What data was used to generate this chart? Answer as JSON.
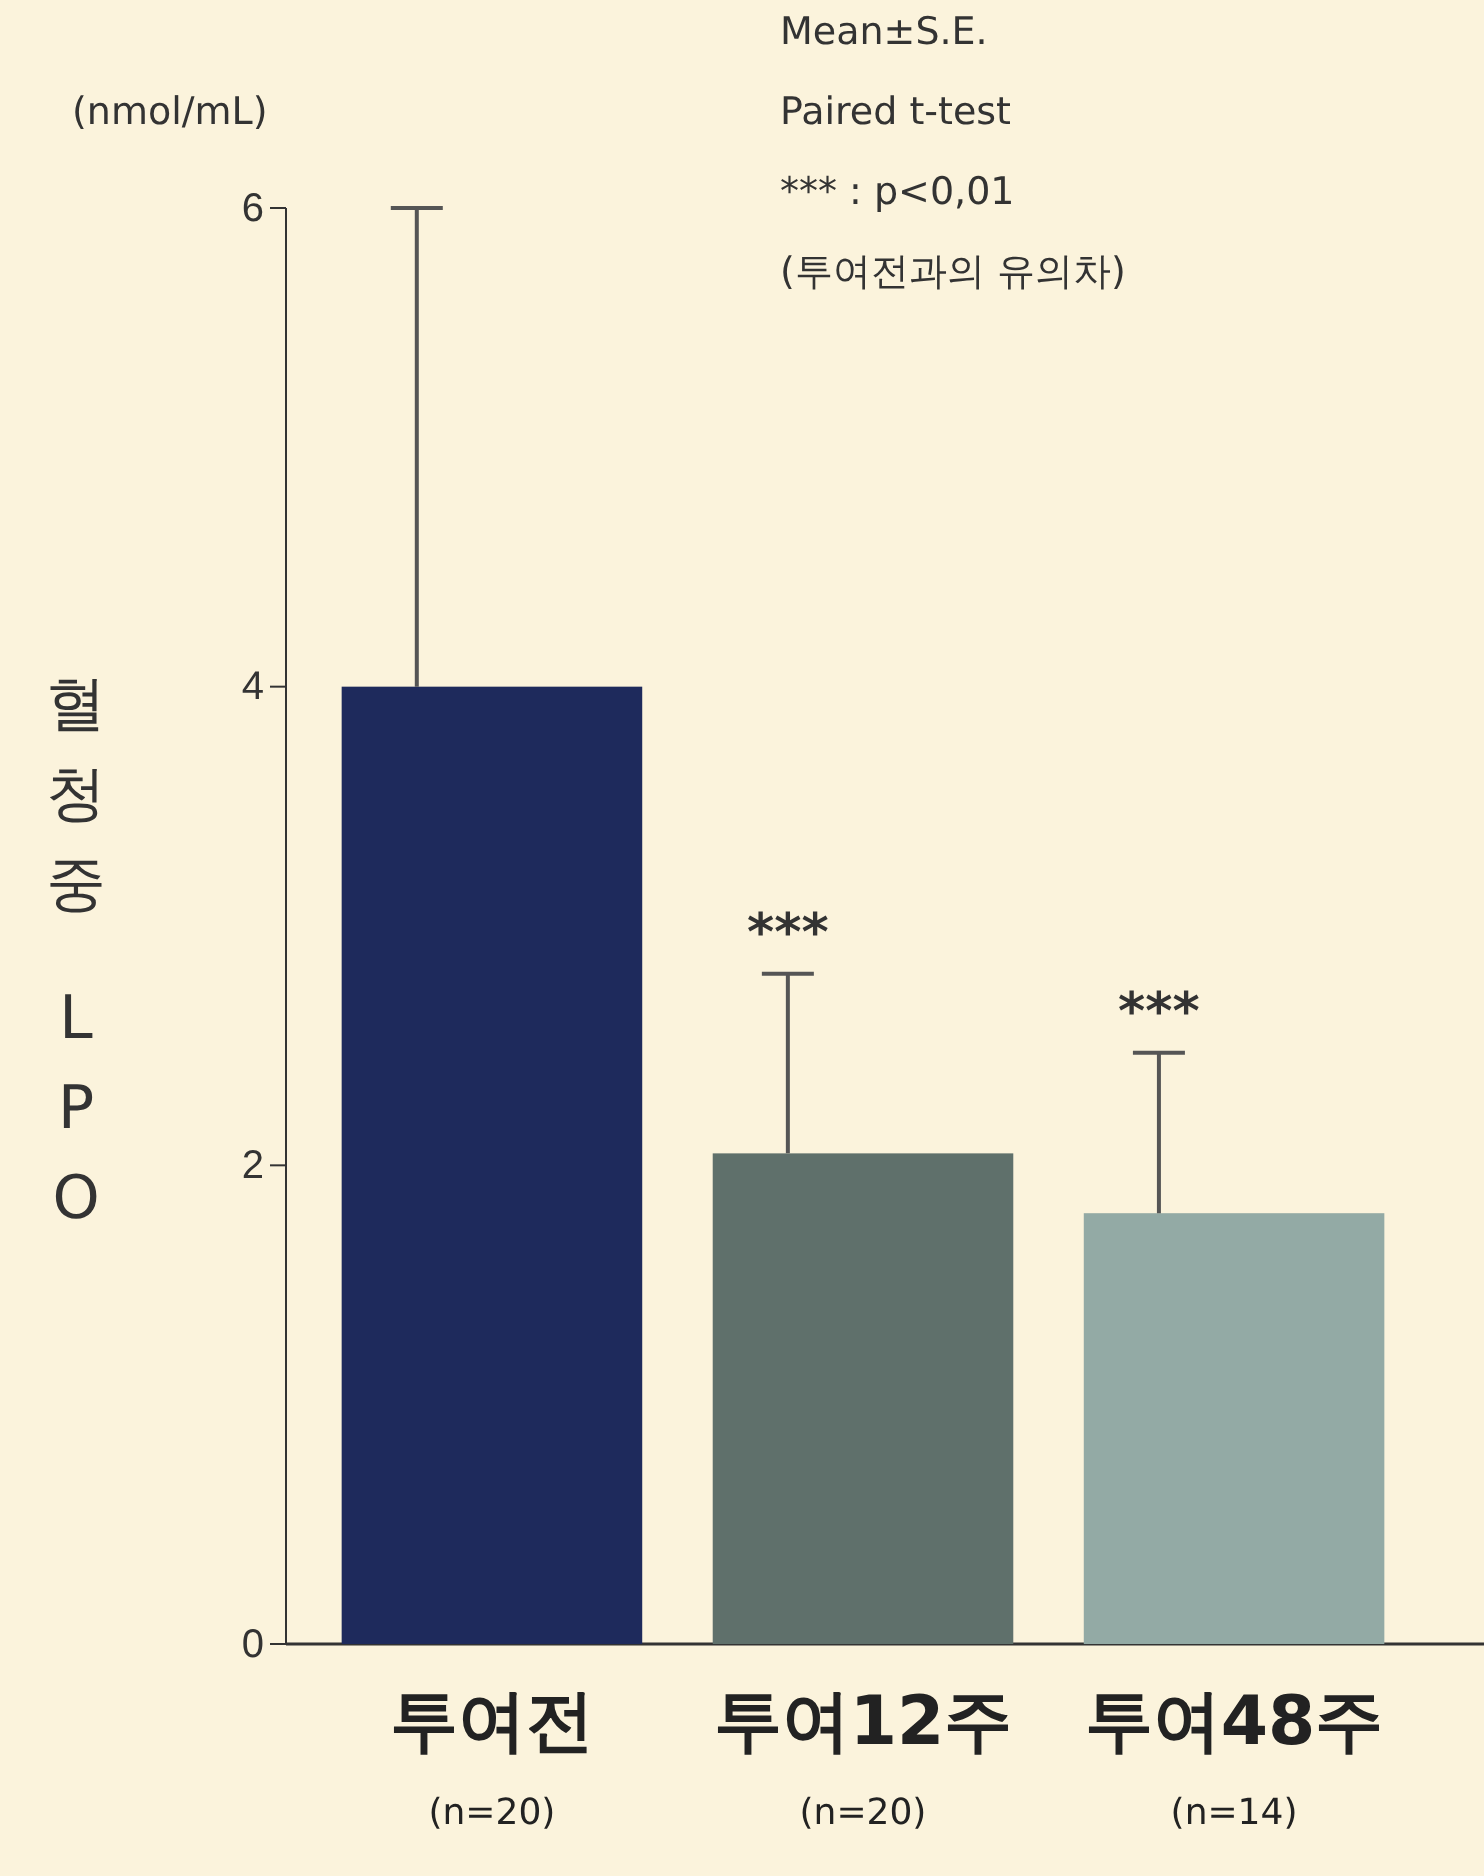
{
  "chart_data": {
    "type": "bar",
    "ylabel": "혈청중 LPO",
    "categories": [
      "투여전\n(n=20)",
      "투여12주\n(n=20)",
      "투여48주\n(n=14)"
    ],
    "values": [
      4.0,
      2.05,
      1.8
    ],
    "errors": [
      [
        4.0,
        6.0
      ],
      [
        2.05,
        2.8
      ],
      [
        1.8,
        2.47
      ]
    ],
    "colors": [
      "#1e2a5c",
      "#5f706b",
      "#93aaa5"
    ],
    "ylim": [
      0,
      6
    ],
    "yticks": [
      0,
      2,
      4,
      6
    ],
    "grid": false,
    "annotations": [
      "(nmol/mL)",
      "Mean±S.E.",
      "Paired t-test",
      "*** : p<0,01",
      "(투여전과의 유의차)",
      "***",
      "***"
    ]
  }
}
